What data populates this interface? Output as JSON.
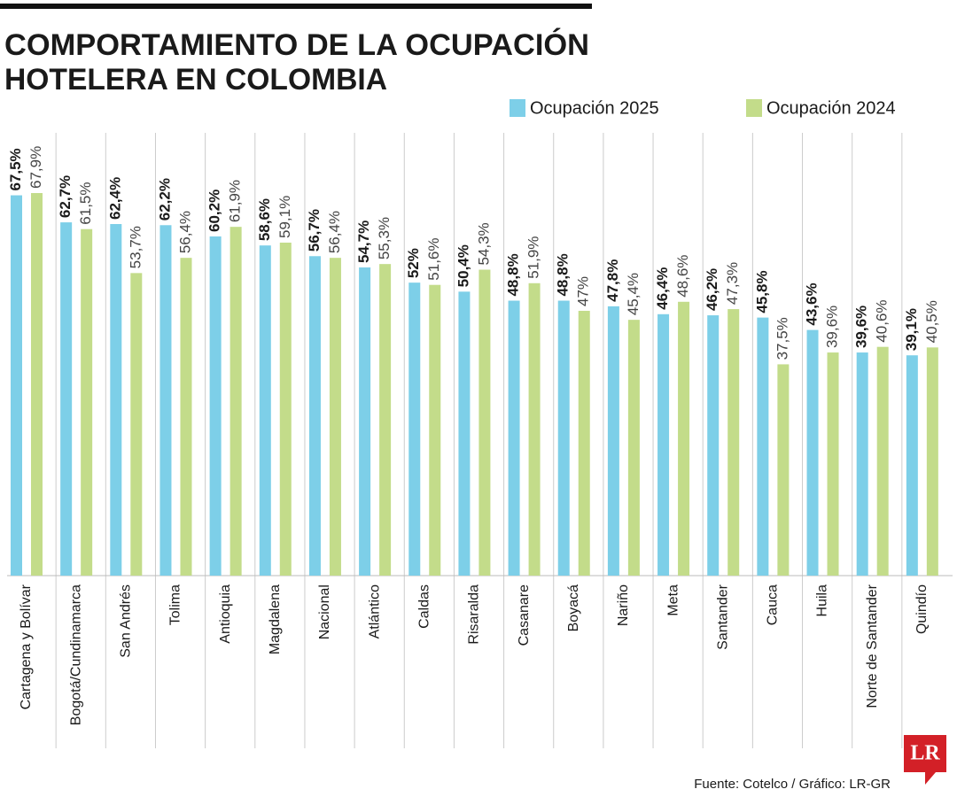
{
  "chart_data": {
    "type": "bar",
    "title": [
      "COMPORTAMIENTO DE LA OCUPACIÓN",
      "HOTELERA EN COLOMBIA"
    ],
    "categories": [
      "Cartagena y Bolívar",
      "Bogotá/Cundinamarca",
      "San Andrés",
      "Tolima",
      "Antioquia",
      "Magdalena",
      "Nacional",
      "Atlántico",
      "Caldas",
      "Risaralda",
      "Casanare",
      "Boyacá",
      "Nariño",
      "Meta",
      "Santander",
      "Cauca",
      "Huila",
      "Norte de Santander",
      "Quindío"
    ],
    "series": [
      {
        "name": "Ocupación 2025",
        "color": "#7dcfe8",
        "values": [
          67.5,
          62.7,
          62.4,
          62.2,
          60.2,
          58.6,
          56.7,
          54.7,
          52,
          50.4,
          48.8,
          48.8,
          47.8,
          46.4,
          46.2,
          45.8,
          43.6,
          39.6,
          39.1
        ],
        "value_labels": [
          "67,5%",
          "62,7%",
          "62,4%",
          "62,2%",
          "60,2%",
          "58,6%",
          "56,7%",
          "54,7%",
          "52%",
          "50,4%",
          "48,8%",
          "48,8%",
          "47,8%",
          "46,4%",
          "46,2%",
          "45,8%",
          "43,6%",
          "39,6%",
          "39,1%"
        ]
      },
      {
        "name": "Ocupación 2024",
        "color": "#c3dc8a",
        "values": [
          67.9,
          61.5,
          53.7,
          56.4,
          61.9,
          59.1,
          56.4,
          55.3,
          51.6,
          54.3,
          51.9,
          47,
          45.4,
          48.6,
          47.3,
          37.5,
          39.6,
          40.6,
          40.5
        ],
        "value_labels": [
          "67,9%",
          "61,5%",
          "53,7%",
          "56,4%",
          "61,9%",
          "59,1%",
          "56,4%",
          "55,3%",
          "51,6%",
          "54,3%",
          "51,9%",
          "47%",
          "45,4%",
          "48,6%",
          "47,3%",
          "37,5%",
          "39,6%",
          "40,6%",
          "40,5%"
        ]
      }
    ],
    "source": "Fuente: Cotelco / Gráfico: LR-GR",
    "logo": "LR"
  }
}
